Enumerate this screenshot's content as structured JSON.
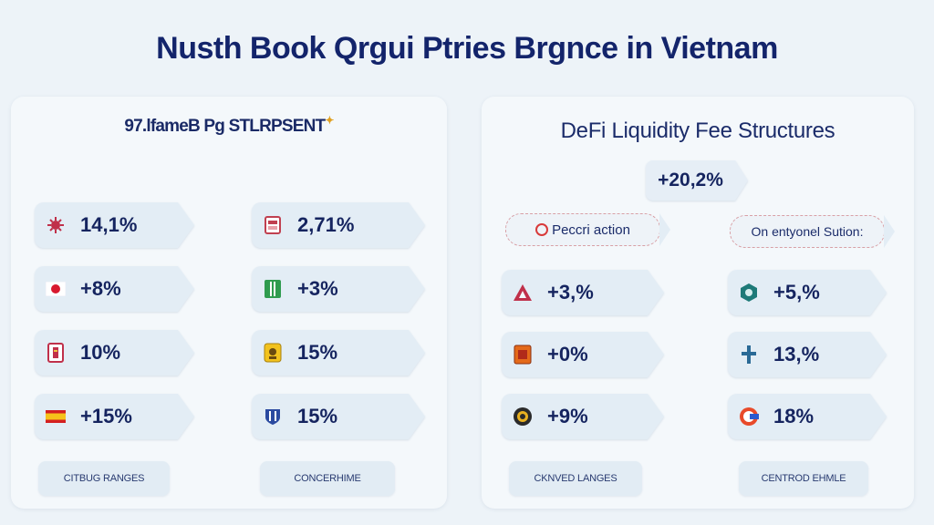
{
  "page_title": "Nusth Book Qrgui Ptries Brgnce in Vietnam",
  "left_panel": {
    "title": "97.lfameB Pg STLRPSENT",
    "col1": [
      {
        "icon": "virus-icon",
        "value": "14,1%"
      },
      {
        "icon": "japan-flag-icon",
        "value": "+8%"
      },
      {
        "icon": "emblem-icon",
        "value": "10%"
      },
      {
        "icon": "spain-flag-icon",
        "value": "+15%"
      }
    ],
    "col2": [
      {
        "icon": "red-card-icon",
        "value": "2,71%"
      },
      {
        "icon": "green-card-icon",
        "value": "+3%"
      },
      {
        "icon": "yellow-badge-icon",
        "value": "15%"
      },
      {
        "icon": "shield-icon",
        "value": "15%"
      }
    ],
    "buttons": [
      "CITBUG RANGES",
      "CONCERHIME"
    ]
  },
  "right_panel": {
    "title": "DeFi Liquidity Fee Structures",
    "badge": "+20,2%",
    "tag_left": "Peccri action",
    "tag_right": "On entyonel Sution:",
    "col1": [
      {
        "icon": "triangle-a-icon",
        "value": "+3,%"
      },
      {
        "icon": "orange-shield-icon",
        "value": "+0%"
      },
      {
        "icon": "coin-icon",
        "value": "+9%"
      }
    ],
    "col2": [
      {
        "icon": "teal-emblem-icon",
        "value": "+5,%"
      },
      {
        "icon": "cross-icon",
        "value": "13,%"
      },
      {
        "icon": "c-logo-icon",
        "value": "18%"
      }
    ],
    "buttons": [
      "CKNVED LANGES",
      "CENTROD EHMLE"
    ]
  },
  "colors": {
    "background": "#edf3f8",
    "panel": "#f4f8fb",
    "pill": "#e3edf5",
    "text": "#15245f"
  }
}
